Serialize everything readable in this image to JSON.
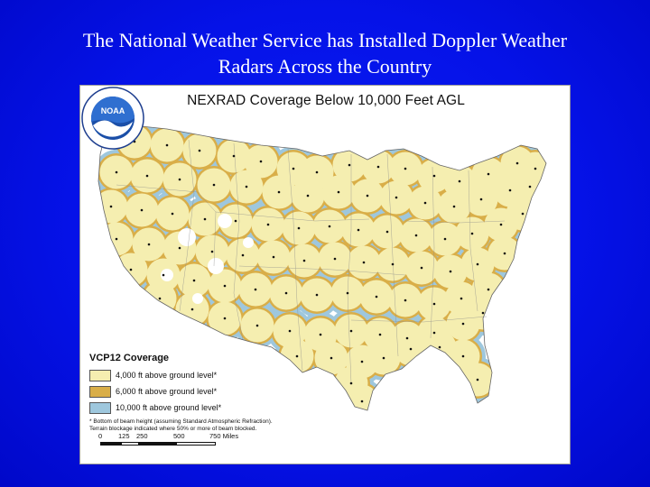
{
  "slide": {
    "title_line1": "The National Weather Service has Installed Doppler Weather",
    "title_line2": "Radars Across the Country"
  },
  "map": {
    "title": "NEXRAD Coverage Below 10,000 Feet AGL",
    "colors": {
      "land_background": "#ffffff",
      "coverage_4000": "#f5eeb0",
      "coverage_6000": "#d9ae48",
      "coverage_10000": "#9ec7dd",
      "boundaries": "#7a7a7a",
      "radar_sites": "#111111"
    },
    "icons": {
      "radar_site": "radar-site-marker",
      "agency_logo": "noaa-logo"
    }
  },
  "legend": {
    "title": "VCP12 Coverage",
    "items": [
      {
        "label": "4,000  ft above ground level*",
        "color": "#f5eeb0"
      },
      {
        "label": "6,000  ft above ground level*",
        "color": "#d9ae48"
      },
      {
        "label": "10,000  ft above ground level*",
        "color": "#9ec7dd"
      }
    ],
    "note_line1": "* Bottom of beam height (assuming Standard Atmospheric Refraction).",
    "note_line2": "Terrain blockage indicated where 50% or more of beam blocked."
  },
  "scale": {
    "labels": [
      "0",
      "125",
      "250",
      "500",
      "750 Miles"
    ]
  },
  "logo": {
    "text": "NOAA"
  }
}
